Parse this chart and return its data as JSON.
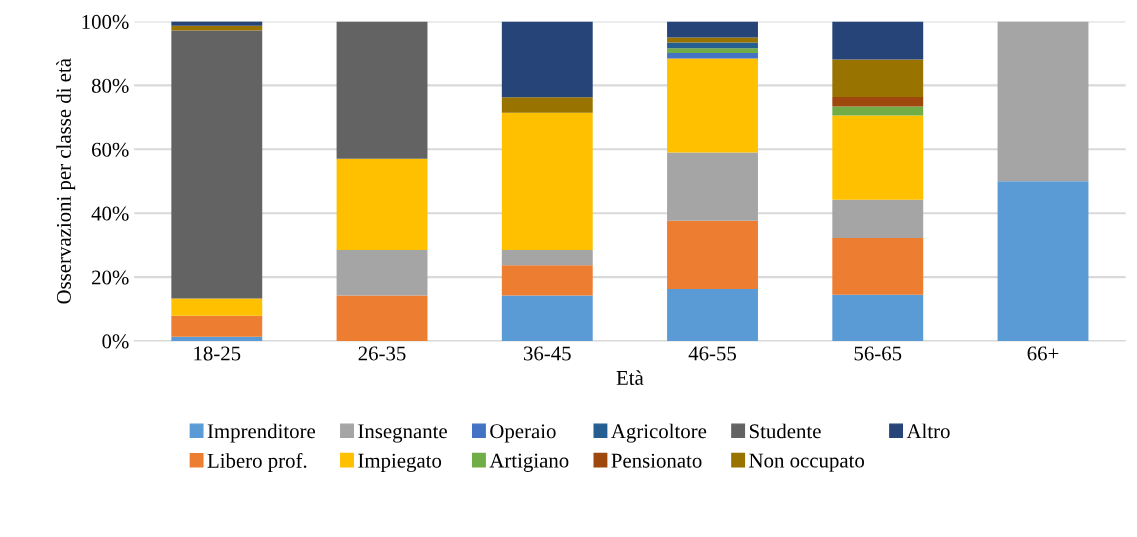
{
  "chart_data": {
    "type": "bar",
    "stacked": true,
    "xlabel": "Età",
    "ylabel": "Osservazioni per classe di età",
    "categories": [
      "18-25",
      "26-35",
      "36-45",
      "46-55",
      "56-65",
      "66+"
    ],
    "ylim": [
      0,
      100
    ],
    "yticks": [
      {
        "value": 0,
        "label": "0%"
      },
      {
        "value": 20,
        "label": "20%"
      },
      {
        "value": 40,
        "label": "40%"
      },
      {
        "value": 60,
        "label": "60%"
      },
      {
        "value": 80,
        "label": "80%"
      },
      {
        "value": 100,
        "label": "100%"
      }
    ],
    "grid": "y",
    "legend": "bottom",
    "series": [
      {
        "name": "Imprenditore",
        "color": "#5b9bd5",
        "values": [
          1.3,
          0,
          14.2,
          16.3,
          14.5,
          50
        ]
      },
      {
        "name": "Libero prof.",
        "color": "#ed7d31",
        "values": [
          6.6,
          14.2,
          9.5,
          21.3,
          17.7,
          0
        ]
      },
      {
        "name": "Insegnante",
        "color": "#a5a5a5",
        "values": [
          0,
          14.3,
          4.8,
          21.4,
          12.0,
          50
        ]
      },
      {
        "name": "Impiegato",
        "color": "#ffc000",
        "values": [
          5.4,
          28.5,
          42.9,
          29.4,
          26.4,
          0
        ]
      },
      {
        "name": "Operaio",
        "color": "#4472c4",
        "values": [
          0,
          0,
          0,
          1.7,
          0,
          0
        ]
      },
      {
        "name": "Artigiano",
        "color": "#70ad47",
        "values": [
          0,
          0,
          0,
          1.5,
          2.8,
          0
        ]
      },
      {
        "name": "Agricoltore",
        "color": "#255e91",
        "values": [
          0,
          0,
          0,
          1.8,
          0,
          0
        ]
      },
      {
        "name": "Pensionato",
        "color": "#9e480e",
        "values": [
          0,
          0,
          0,
          0,
          3.0,
          0
        ]
      },
      {
        "name": "Studente",
        "color": "#636363",
        "values": [
          83.9,
          43.0,
          0,
          0,
          0,
          0
        ]
      },
      {
        "name": "Non occupato",
        "color": "#997300",
        "values": [
          1.5,
          0,
          4.9,
          1.6,
          11.7,
          0
        ]
      },
      {
        "name": "Altro",
        "color": "#264478",
        "values": [
          1.4,
          0,
          23.7,
          5.0,
          11.9,
          0
        ]
      }
    ]
  }
}
